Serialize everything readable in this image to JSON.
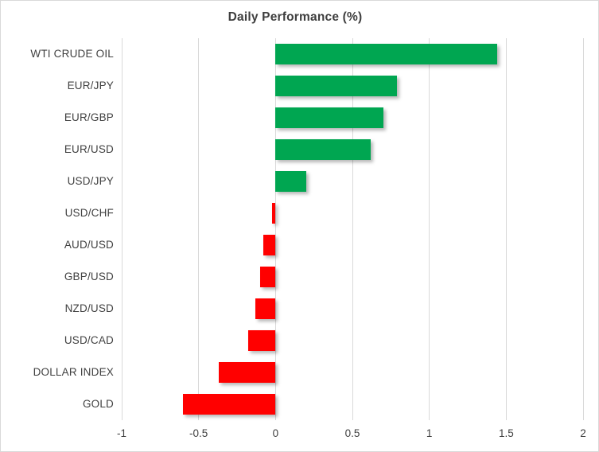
{
  "chart_data": {
    "type": "bar",
    "orientation": "horizontal",
    "title": "Daily Performance (%)",
    "categories": [
      "WTI CRUDE OIL",
      "EUR/JPY",
      "EUR/GBP",
      "EUR/USD",
      "USD/JPY",
      "USD/CHF",
      "AUD/USD",
      "GBP/USD",
      "NZD/USD",
      "USD/CAD",
      "DOLLAR INDEX",
      "GOLD"
    ],
    "values": [
      1.44,
      0.79,
      0.7,
      0.62,
      0.2,
      -0.02,
      -0.08,
      -0.1,
      -0.13,
      -0.18,
      -0.37,
      -0.6
    ],
    "xlabel": "",
    "ylabel": "",
    "xlim": [
      -1,
      2
    ],
    "xticks": [
      -1,
      -0.5,
      0,
      0.5,
      1,
      1.5,
      2
    ],
    "grid": true,
    "legend": "none",
    "colors": {
      "positive": "#00A651",
      "negative": "#FF0000",
      "gridline": "#D9D9D9",
      "text": "#404040",
      "background": "#FFFFFF",
      "border": "#D9D9D9"
    }
  }
}
